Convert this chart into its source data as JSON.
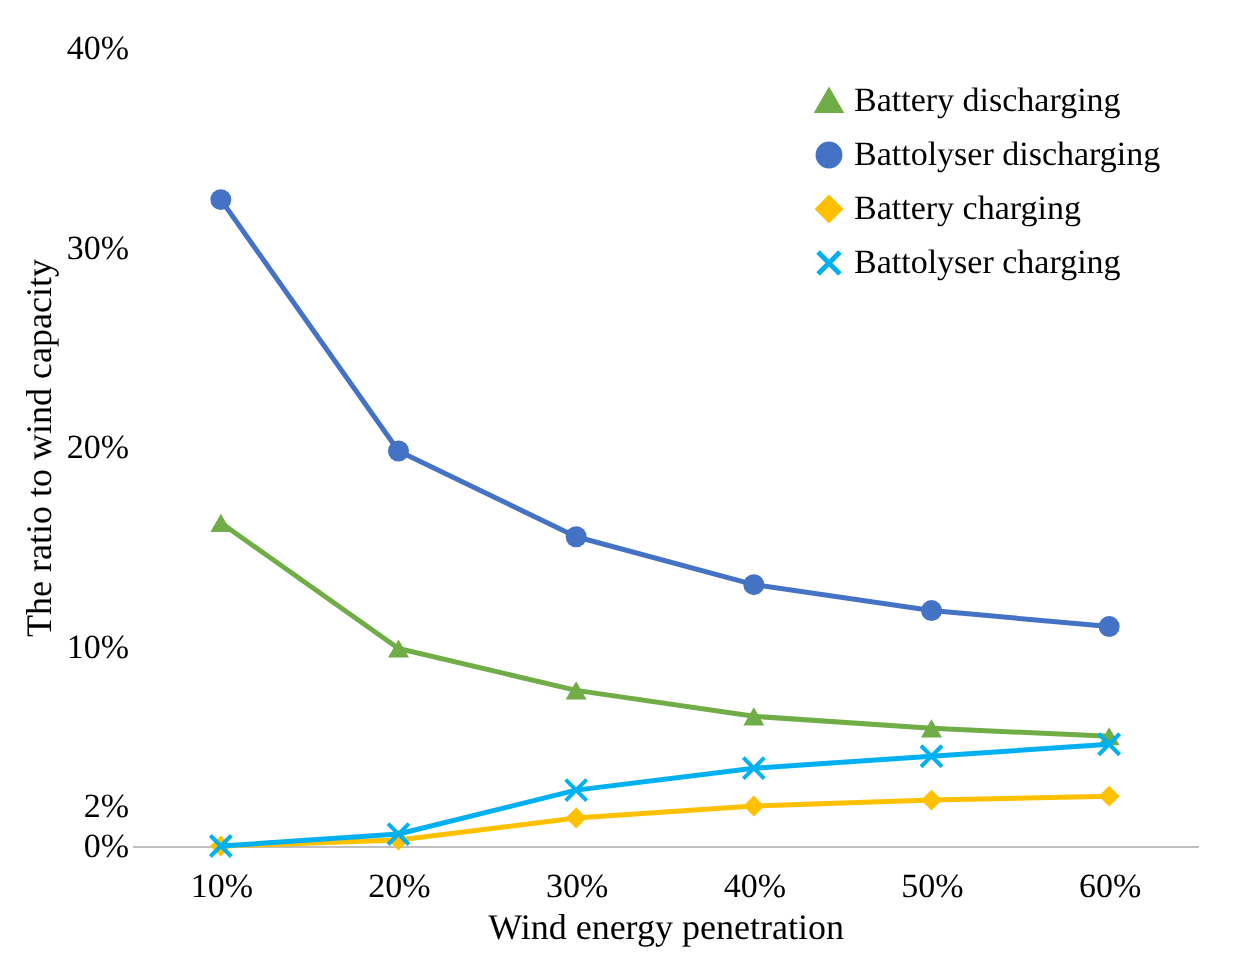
{
  "chart_data": {
    "type": "line",
    "xlabel": "Wind energy penetration",
    "ylabel": "The ratio to wind capacity",
    "categories": [
      "10%",
      "20%",
      "30%",
      "40%",
      "50%",
      "60%"
    ],
    "series": [
      {
        "name": "Battery discharging",
        "color": "#70ad47",
        "marker": "triangle",
        "values": [
          16.2,
          9.9,
          7.8,
          6.5,
          5.9,
          5.5
        ]
      },
      {
        "name": "Battolyser discharging",
        "color": "#4472c4",
        "marker": "circle",
        "values": [
          32.4,
          19.8,
          15.5,
          13.1,
          11.8,
          11.0
        ]
      },
      {
        "name": "Battery charging",
        "color": "#ffc000",
        "marker": "diamond",
        "values": [
          0,
          0.3,
          1.4,
          2.0,
          2.3,
          2.5
        ]
      },
      {
        "name": "Battolyser charging",
        "color": "#00b0f0",
        "marker": "cross",
        "values": [
          0,
          0.6,
          2.8,
          3.9,
          4.5,
          5.1
        ]
      }
    ],
    "ylim": [
      0,
      40
    ],
    "yticks": [
      {
        "value": 0,
        "label": "0%"
      },
      {
        "value": 2,
        "label": "2%"
      },
      {
        "value": 10,
        "label": "10%"
      },
      {
        "value": 20,
        "label": "20%"
      },
      {
        "value": 30,
        "label": "30%"
      },
      {
        "value": 40,
        "label": "40%"
      }
    ],
    "legend": "top right",
    "line_style": "solid"
  }
}
